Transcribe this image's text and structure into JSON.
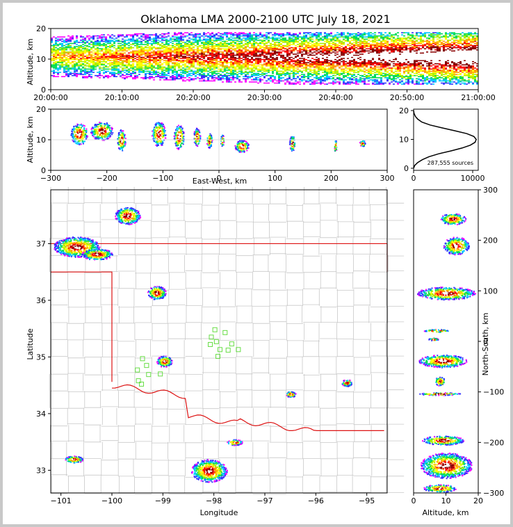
{
  "title": "Oklahoma LMA 2000-2100 UTC July 18, 2021",
  "colors": {
    "state_border": "#dd1111",
    "county_lines": "#c8c8c8",
    "station_marker": "#66dd44",
    "colormap": [
      "#ff00ff",
      "#3333ff",
      "#00c8ff",
      "#00dd55",
      "#aaee00",
      "#ffff00",
      "#ff9900",
      "#ff0000",
      "#880000",
      "#ffffff"
    ]
  },
  "chart_data": [
    {
      "name": "altitude-time",
      "type": "heatmap",
      "xlabel": "",
      "ylabel": "Altitude, km",
      "xticks": [
        "20:00:00",
        "20:10:00",
        "20:20:00",
        "20:30:00",
        "20:40:00",
        "20:50:00",
        "21:00:00"
      ],
      "yticks": [
        "0",
        "10",
        "20"
      ],
      "xlim": [
        "20:00:00",
        "21:00:00"
      ],
      "ylim": [
        0,
        20
      ]
    },
    {
      "name": "east-west-altitude",
      "type": "heatmap",
      "xlabel": "East-West, km",
      "ylabel": "Altitude, km",
      "xticks": [
        "−300",
        "−200",
        "−100",
        "0",
        "100",
        "200",
        "300"
      ],
      "yticks": [
        "0",
        "10",
        "20"
      ],
      "xlim": [
        -300,
        300
      ],
      "ylim": [
        0,
        20
      ],
      "cells": [
        {
          "x": -250,
          "z": 12,
          "w": 30,
          "h": 7
        },
        {
          "x": -210,
          "z": 13,
          "w": 40,
          "h": 6
        },
        {
          "x": -175,
          "z": 10,
          "w": 15,
          "h": 7
        },
        {
          "x": -108,
          "z": 12,
          "w": 25,
          "h": 8
        },
        {
          "x": -72,
          "z": 11,
          "w": 18,
          "h": 8
        },
        {
          "x": -40,
          "z": 11,
          "w": 12,
          "h": 6
        },
        {
          "x": -18,
          "z": 10,
          "w": 10,
          "h": 5
        },
        {
          "x": 5,
          "z": 10,
          "w": 6,
          "h": 4
        },
        {
          "x": 40,
          "z": 8,
          "w": 25,
          "h": 4
        },
        {
          "x": 130,
          "z": 9,
          "w": 10,
          "h": 5
        },
        {
          "x": 207,
          "z": 8,
          "w": 4,
          "h": 4
        },
        {
          "x": 255,
          "z": 9,
          "w": 10,
          "h": 2
        }
      ]
    },
    {
      "name": "source-histogram",
      "type": "line",
      "xticks": [
        "0",
        "10000"
      ],
      "yticks": [
        "0",
        "10",
        "20"
      ],
      "xlim": [
        0,
        10000
      ],
      "ylim": [
        0,
        20
      ],
      "x": [
        0,
        200,
        700,
        1500,
        2600,
        4200,
        6300,
        8200,
        9600,
        10400,
        10600,
        10200,
        9000,
        7000,
        4800,
        2800,
        1400,
        700,
        300,
        80,
        0
      ],
      "y": [
        0,
        1,
        2,
        3,
        4,
        5,
        6,
        7,
        8,
        9,
        10,
        11,
        12,
        13,
        14,
        15,
        16,
        17,
        18,
        19,
        20
      ],
      "annotation": "287,555 sources"
    },
    {
      "name": "plan-view-map",
      "type": "scatter",
      "xlabel": "Longitude",
      "ylabel": "Latitude",
      "xticks": [
        "−101",
        "−100",
        "−99",
        "−98",
        "−97",
        "−96",
        "−95"
      ],
      "yticks": [
        "33",
        "34",
        "35",
        "36",
        "37"
      ],
      "xlim": [
        -101.2,
        -94.6
      ],
      "ylim": [
        32.6,
        37.95
      ],
      "storms": [
        {
          "lon": -100.7,
          "lat": 36.95,
          "w": 0.45,
          "h": 0.18
        },
        {
          "lon": -100.3,
          "lat": 36.82,
          "w": 0.3,
          "h": 0.1
        },
        {
          "lon": -99.7,
          "lat": 37.5,
          "w": 0.25,
          "h": 0.15
        },
        {
          "lon": -99.13,
          "lat": 36.14,
          "w": 0.18,
          "h": 0.12
        },
        {
          "lon": -98.98,
          "lat": 34.93,
          "w": 0.15,
          "h": 0.1
        },
        {
          "lon": -98.1,
          "lat": 33.0,
          "w": 0.35,
          "h": 0.2
        },
        {
          "lon": -95.4,
          "lat": 34.55,
          "w": 0.1,
          "h": 0.06
        },
        {
          "lon": -96.5,
          "lat": 34.35,
          "w": 0.1,
          "h": 0.05
        },
        {
          "lon": -97.6,
          "lat": 33.5,
          "w": 0.15,
          "h": 0.05
        },
        {
          "lon": -100.75,
          "lat": 33.2,
          "w": 0.18,
          "h": 0.06
        }
      ],
      "stations": [
        {
          "lon": -97.98,
          "lat": 35.48
        },
        {
          "lon": -97.78,
          "lat": 35.43
        },
        {
          "lon": -98.05,
          "lat": 35.35
        },
        {
          "lon": -97.95,
          "lat": 35.27
        },
        {
          "lon": -98.07,
          "lat": 35.22
        },
        {
          "lon": -97.65,
          "lat": 35.23
        },
        {
          "lon": -97.72,
          "lat": 35.12
        },
        {
          "lon": -97.88,
          "lat": 35.13
        },
        {
          "lon": -97.52,
          "lat": 35.13
        },
        {
          "lon": -97.92,
          "lat": 35.01
        },
        {
          "lon": -99.4,
          "lat": 34.97
        },
        {
          "lon": -99.32,
          "lat": 34.85
        },
        {
          "lon": -99.5,
          "lat": 34.77
        },
        {
          "lon": -99.28,
          "lat": 34.69
        },
        {
          "lon": -99.05,
          "lat": 34.7
        },
        {
          "lon": -99.48,
          "lat": 34.58
        },
        {
          "lon": -99.42,
          "lat": 34.52
        }
      ]
    },
    {
      "name": "altitude-north-south",
      "type": "heatmap",
      "xlabel": "Altitude, km",
      "ylabel": "North-South, km",
      "xticks": [
        "0",
        "10",
        "20"
      ],
      "yticks": [
        "300",
        "200",
        "100",
        "0",
        "−100",
        "−200",
        "−300"
      ],
      "xlim": [
        0,
        20
      ],
      "ylim": [
        -300,
        300
      ],
      "cells": [
        {
          "z": 12,
          "y": 243,
          "w": 8,
          "h": 22
        },
        {
          "z": 13,
          "y": 190,
          "w": 8,
          "h": 35
        },
        {
          "z": 10,
          "y": 96,
          "w": 18,
          "h": 25
        },
        {
          "z": 7,
          "y": 22,
          "w": 8,
          "h": 5
        },
        {
          "z": 6,
          "y": 5,
          "w": 3,
          "h": 5
        },
        {
          "z": 9,
          "y": -38,
          "w": 15,
          "h": 25
        },
        {
          "z": 8,
          "y": -78,
          "w": 3,
          "h": 18
        },
        {
          "z": 8,
          "y": -103,
          "w": 13,
          "h": 5
        },
        {
          "z": 9,
          "y": -195,
          "w": 13,
          "h": 18
        },
        {
          "z": 10,
          "y": -245,
          "w": 16,
          "h": 50
        },
        {
          "z": 8,
          "y": -290,
          "w": 10,
          "h": 15
        }
      ]
    }
  ]
}
